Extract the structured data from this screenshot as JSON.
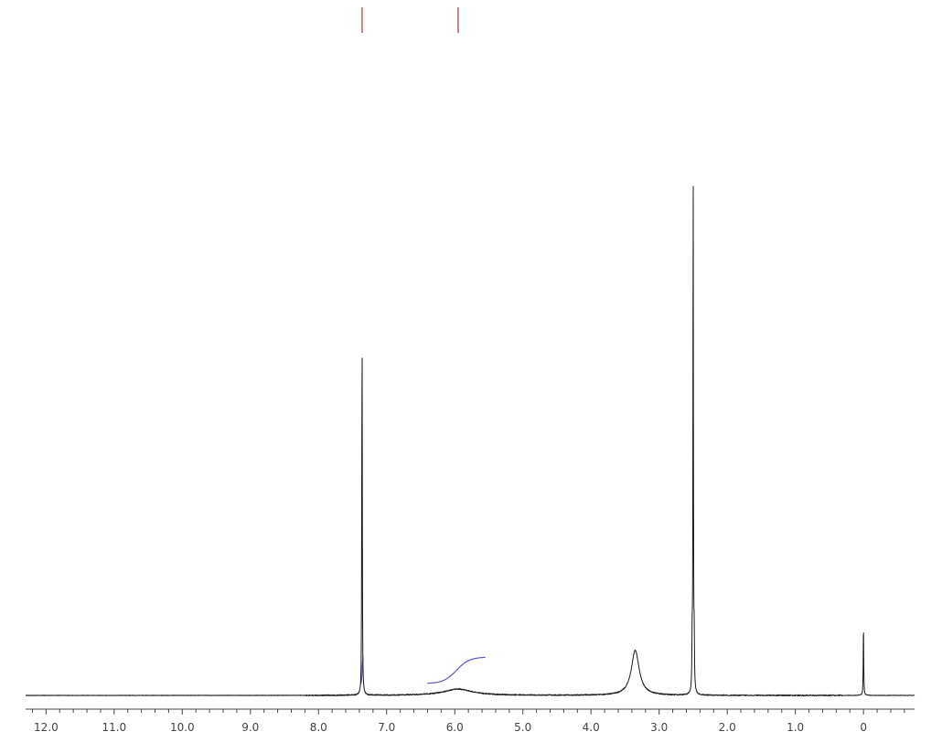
{
  "chart_data": {
    "type": "line",
    "title": "",
    "xlabel": "",
    "ylabel": "",
    "x_axis": {
      "reversed": true,
      "range": [
        12.3,
        -0.75
      ],
      "tick_values": [
        12.0,
        11.0,
        10.0,
        9.0,
        8.0,
        7.0,
        6.0,
        5.0,
        4.0,
        3.0,
        2.0,
        1.0,
        0
      ],
      "tick_labels": [
        "12.0",
        "11.0",
        "10.0",
        "9.0",
        "8.0",
        "7.0",
        "6.0",
        "5.0",
        "4.0",
        "3.0",
        "2.0",
        "1.0",
        "0"
      ],
      "minor_step": 0.2
    },
    "y_axis": {
      "visible": false,
      "range": [
        0,
        1.0
      ]
    },
    "grid": false,
    "legend": "none",
    "peaks": [
      {
        "ppm": 7.36,
        "height": 0.61,
        "width": 0.004,
        "shape": "sharp"
      },
      {
        "ppm": 7.365,
        "height": 0.22,
        "width": 0.003,
        "shape": "sharp"
      },
      {
        "ppm": 5.95,
        "height": 0.012,
        "width": 0.25,
        "shape": "broad"
      },
      {
        "ppm": 3.35,
        "height": 0.085,
        "width": 0.07,
        "shape": "broad"
      },
      {
        "ppm": 2.5,
        "height": 1.0,
        "width": 0.004,
        "shape": "sharp"
      },
      {
        "ppm": 2.515,
        "height": 0.09,
        "width": 0.004,
        "shape": "sharp"
      },
      {
        "ppm": 2.485,
        "height": 0.09,
        "width": 0.004,
        "shape": "sharp"
      },
      {
        "ppm": 0.0,
        "height": 0.135,
        "width": 0.004,
        "shape": "sharp"
      }
    ],
    "integral_curves": [
      {
        "from_ppm": 6.4,
        "to_ppm": 5.55,
        "rise": 0.05,
        "color": "#5a56d6"
      },
      {
        "from_ppm": 7.38,
        "to_ppm": 7.34,
        "rise": 0.05,
        "color": "#5a56d6"
      }
    ],
    "peak_markers": [
      {
        "ppm": 7.36,
        "color": "#b03030"
      },
      {
        "ppm": 5.95,
        "color": "#b03030"
      }
    ],
    "colors": {
      "spectrum": "#1a1a1a",
      "integral": "#5a56d6",
      "marker": "#b03030",
      "axis": "#444444"
    }
  }
}
